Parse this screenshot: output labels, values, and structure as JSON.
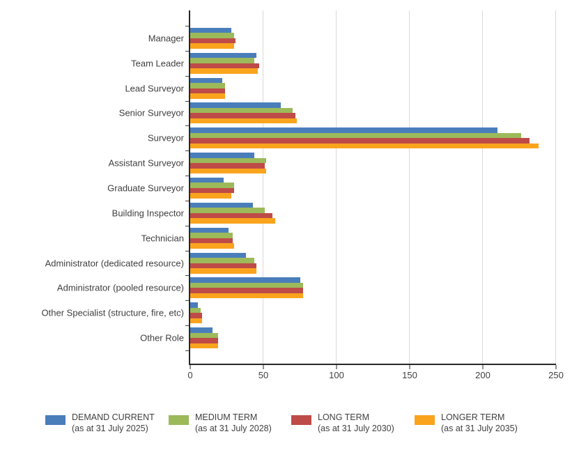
{
  "chart_data": {
    "type": "bar",
    "orientation": "horizontal",
    "title": "",
    "xlabel": "",
    "ylabel": "",
    "xlim": [
      0,
      250
    ],
    "x_ticks": [
      0,
      50,
      100,
      150,
      200,
      250
    ],
    "grid": "vertical",
    "legend_position": "bottom",
    "categories": [
      "Manager",
      "Team Leader",
      "Lead Surveyor",
      "Senior Surveyor",
      "Surveyor",
      "Assistant Surveyor",
      "Graduate Surveyor",
      "Building Inspector",
      "Technician",
      "Administrator (dedicated resource)",
      "Administrator (pooled resource)",
      "Other Specialist (structure, fire, etc)",
      "Other Role"
    ],
    "series": [
      {
        "name": "DEMAND CURRENT",
        "subname": "(as at 31 July 2025)",
        "color": "#4A7EBB",
        "values": [
          28,
          45,
          22,
          62,
          210,
          44,
          23,
          43,
          26,
          38,
          75,
          5,
          15
        ]
      },
      {
        "name": "MEDIUM TERM",
        "subname": "(as at 31 July 2028)",
        "color": "#9CBA5A",
        "values": [
          30,
          44,
          24,
          70,
          226,
          52,
          30,
          51,
          29,
          44,
          77,
          7,
          19
        ]
      },
      {
        "name": "LONG TERM",
        "subname": "(as at 31 July 2030)",
        "color": "#BE4B48",
        "values": [
          31,
          47,
          24,
          72,
          232,
          51,
          30,
          56,
          29,
          45,
          77,
          8,
          19
        ]
      },
      {
        "name": "LONGER TERM",
        "subname": "(as at 31 July 2035)",
        "color": "#FAA41D",
        "values": [
          30,
          46,
          24,
          73,
          238,
          52,
          28,
          58,
          30,
          45,
          77,
          8,
          19
        ]
      }
    ]
  },
  "colors": {
    "axis": "#262626",
    "grid": "#d9d9d9",
    "text": "#404040",
    "background": "#ffffff"
  }
}
